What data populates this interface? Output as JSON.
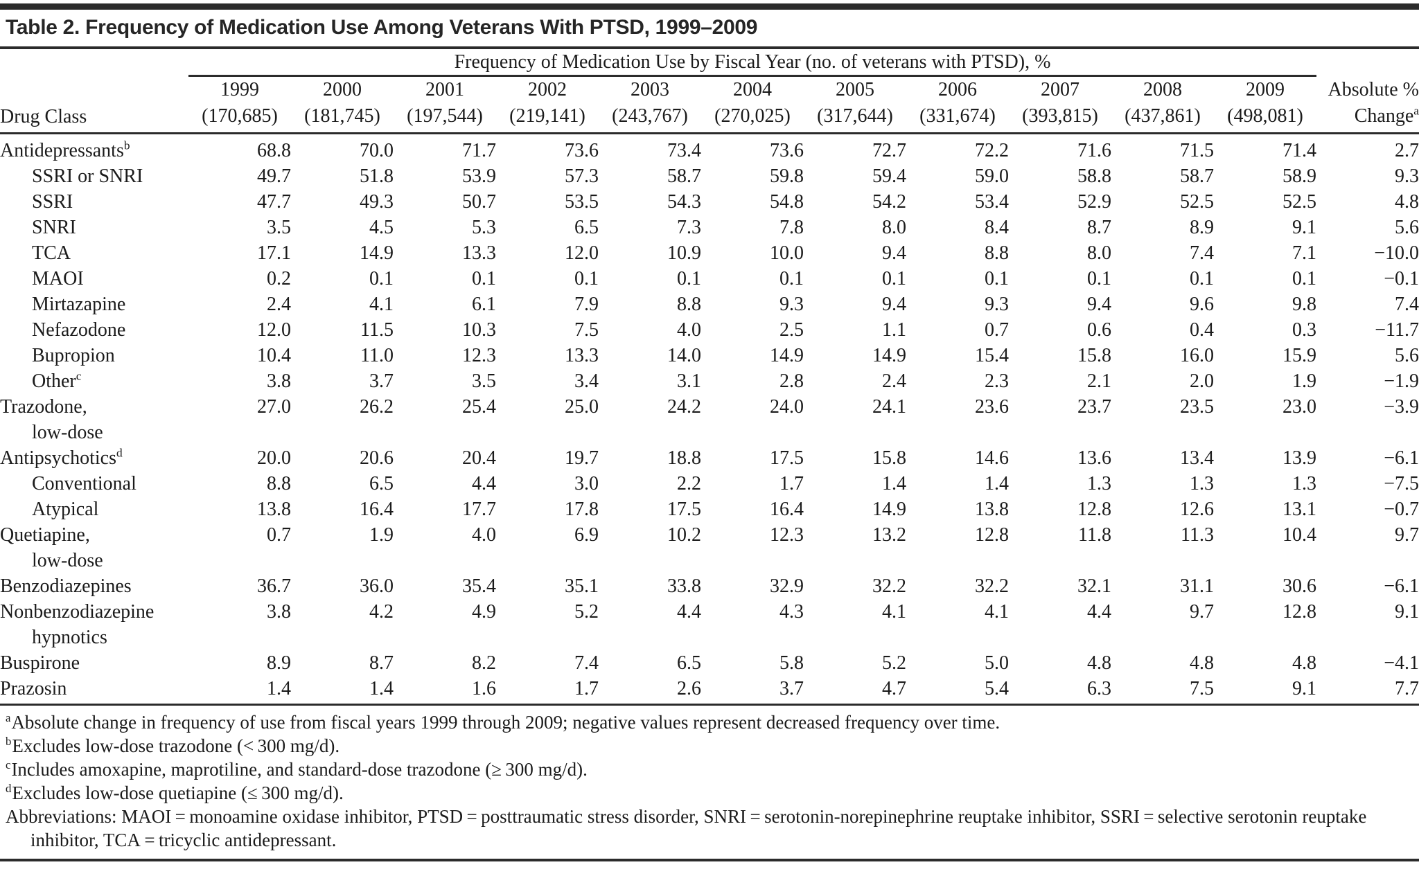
{
  "title": "Table 2. Frequency of Medication Use Among Veterans With PTSD, 1999–2009",
  "table": {
    "span_header": "Frequency of Medication Use by Fiscal Year (no. of veterans with PTSD), %",
    "drug_class_header": "Drug Class",
    "change_header_line1": "Absolute %",
    "change_header_line2": "Change",
    "change_header_sup": "a",
    "years": [
      {
        "year": "1999",
        "n": "(170,685)"
      },
      {
        "year": "2000",
        "n": "(181,745)"
      },
      {
        "year": "2001",
        "n": "(197,544)"
      },
      {
        "year": "2002",
        "n": "(219,141)"
      },
      {
        "year": "2003",
        "n": "(243,767)"
      },
      {
        "year": "2004",
        "n": "(270,025)"
      },
      {
        "year": "2005",
        "n": "(317,644)"
      },
      {
        "year": "2006",
        "n": "(331,674)"
      },
      {
        "year": "2007",
        "n": "(393,815)"
      },
      {
        "year": "2008",
        "n": "(437,861)"
      },
      {
        "year": "2009",
        "n": "(498,081)"
      }
    ],
    "rows": [
      {
        "label": "Antidepressants",
        "sup": "b",
        "indent": 0,
        "values": [
          "68.8",
          "70.0",
          "71.7",
          "73.6",
          "73.4",
          "73.6",
          "72.7",
          "72.2",
          "71.6",
          "71.5",
          "71.4"
        ],
        "change": "2.7"
      },
      {
        "label": "SSRI or SNRI",
        "indent": 1,
        "values": [
          "49.7",
          "51.8",
          "53.9",
          "57.3",
          "58.7",
          "59.8",
          "59.4",
          "59.0",
          "58.8",
          "58.7",
          "58.9"
        ],
        "change": "9.3"
      },
      {
        "label": "SSRI",
        "indent": 1,
        "values": [
          "47.7",
          "49.3",
          "50.7",
          "53.5",
          "54.3",
          "54.8",
          "54.2",
          "53.4",
          "52.9",
          "52.5",
          "52.5"
        ],
        "change": "4.8"
      },
      {
        "label": "SNRI",
        "indent": 1,
        "values": [
          "3.5",
          "4.5",
          "5.3",
          "6.5",
          "7.3",
          "7.8",
          "8.0",
          "8.4",
          "8.7",
          "8.9",
          "9.1"
        ],
        "change": "5.6"
      },
      {
        "label": "TCA",
        "indent": 1,
        "values": [
          "17.1",
          "14.9",
          "13.3",
          "12.0",
          "10.9",
          "10.0",
          "9.4",
          "8.8",
          "8.0",
          "7.4",
          "7.1"
        ],
        "change": "−10.0"
      },
      {
        "label": "MAOI",
        "indent": 1,
        "values": [
          "0.2",
          "0.1",
          "0.1",
          "0.1",
          "0.1",
          "0.1",
          "0.1",
          "0.1",
          "0.1",
          "0.1",
          "0.1"
        ],
        "change": "−0.1"
      },
      {
        "label": "Mirtazapine",
        "indent": 1,
        "values": [
          "2.4",
          "4.1",
          "6.1",
          "7.9",
          "8.8",
          "9.3",
          "9.4",
          "9.3",
          "9.4",
          "9.6",
          "9.8"
        ],
        "change": "7.4"
      },
      {
        "label": "Nefazodone",
        "indent": 1,
        "values": [
          "12.0",
          "11.5",
          "10.3",
          "7.5",
          "4.0",
          "2.5",
          "1.1",
          "0.7",
          "0.6",
          "0.4",
          "0.3"
        ],
        "change": "−11.7"
      },
      {
        "label": "Bupropion",
        "indent": 1,
        "values": [
          "10.4",
          "11.0",
          "12.3",
          "13.3",
          "14.0",
          "14.9",
          "14.9",
          "15.4",
          "15.8",
          "16.0",
          "15.9"
        ],
        "change": "5.6"
      },
      {
        "label": "Other",
        "sup": "c",
        "indent": 1,
        "values": [
          "3.8",
          "3.7",
          "3.5",
          "3.4",
          "3.1",
          "2.8",
          "2.4",
          "2.3",
          "2.1",
          "2.0",
          "1.9"
        ],
        "change": "−1.9"
      },
      {
        "label": "Trazodone,",
        "label2": "low-dose",
        "indent": 0,
        "values": [
          "27.0",
          "26.2",
          "25.4",
          "25.0",
          "24.2",
          "24.0",
          "24.1",
          "23.6",
          "23.7",
          "23.5",
          "23.0"
        ],
        "change": "−3.9"
      },
      {
        "label": "Antipsychotics",
        "sup": "d",
        "indent": 0,
        "values": [
          "20.0",
          "20.6",
          "20.4",
          "19.7",
          "18.8",
          "17.5",
          "15.8",
          "14.6",
          "13.6",
          "13.4",
          "13.9"
        ],
        "change": "−6.1"
      },
      {
        "label": "Conventional",
        "indent": 1,
        "values": [
          "8.8",
          "6.5",
          "4.4",
          "3.0",
          "2.2",
          "1.7",
          "1.4",
          "1.4",
          "1.3",
          "1.3",
          "1.3"
        ],
        "change": "−7.5"
      },
      {
        "label": "Atypical",
        "indent": 1,
        "values": [
          "13.8",
          "16.4",
          "17.7",
          "17.8",
          "17.5",
          "16.4",
          "14.9",
          "13.8",
          "12.8",
          "12.6",
          "13.1"
        ],
        "change": "−0.7"
      },
      {
        "label": "Quetiapine,",
        "label2": "low-dose",
        "indent": 0,
        "values": [
          "0.7",
          "1.9",
          "4.0",
          "6.9",
          "10.2",
          "12.3",
          "13.2",
          "12.8",
          "11.8",
          "11.3",
          "10.4"
        ],
        "change": "9.7"
      },
      {
        "label": "Benzodiazepines",
        "indent": 0,
        "values": [
          "36.7",
          "36.0",
          "35.4",
          "35.1",
          "33.8",
          "32.9",
          "32.2",
          "32.2",
          "32.1",
          "31.1",
          "30.6"
        ],
        "change": "−6.1"
      },
      {
        "label": "Nonbenzodiazepine",
        "label2": "hypnotics",
        "indent": 0,
        "values": [
          "3.8",
          "4.2",
          "4.9",
          "5.2",
          "4.4",
          "4.3",
          "4.1",
          "4.1",
          "4.4",
          "9.7",
          "12.8"
        ],
        "change": "9.1"
      },
      {
        "label": "Buspirone",
        "indent": 0,
        "values": [
          "8.9",
          "8.7",
          "8.2",
          "7.4",
          "6.5",
          "5.8",
          "5.2",
          "5.0",
          "4.8",
          "4.8",
          "4.8"
        ],
        "change": "−4.1"
      },
      {
        "label": "Prazosin",
        "indent": 0,
        "values": [
          "1.4",
          "1.4",
          "1.6",
          "1.7",
          "2.6",
          "3.7",
          "4.7",
          "5.4",
          "6.3",
          "7.5",
          "9.1"
        ],
        "change": "7.7"
      }
    ]
  },
  "footnotes": [
    {
      "marker": "a",
      "text": "Absolute change in frequency of use from fiscal years 1999 through 2009; negative values represent decreased frequency over time."
    },
    {
      "marker": "b",
      "text": "Excludes low-dose trazodone (< 300 mg/d)."
    },
    {
      "marker": "c",
      "text": "Includes amoxapine, maprotiline, and standard-dose trazodone (≥ 300 mg/d)."
    },
    {
      "marker": "d",
      "text": "Excludes low-dose quetiapine (≤ 300 mg/d)."
    }
  ],
  "abbreviations": "Abbreviations: MAOI = monoamine oxidase inhibitor, PTSD = posttraumatic stress disorder, SNRI = serotonin-norepinephrine reuptake inhibitor, SSRI = selective serotonin reuptake inhibitor, TCA = tricyclic antidepressant."
}
